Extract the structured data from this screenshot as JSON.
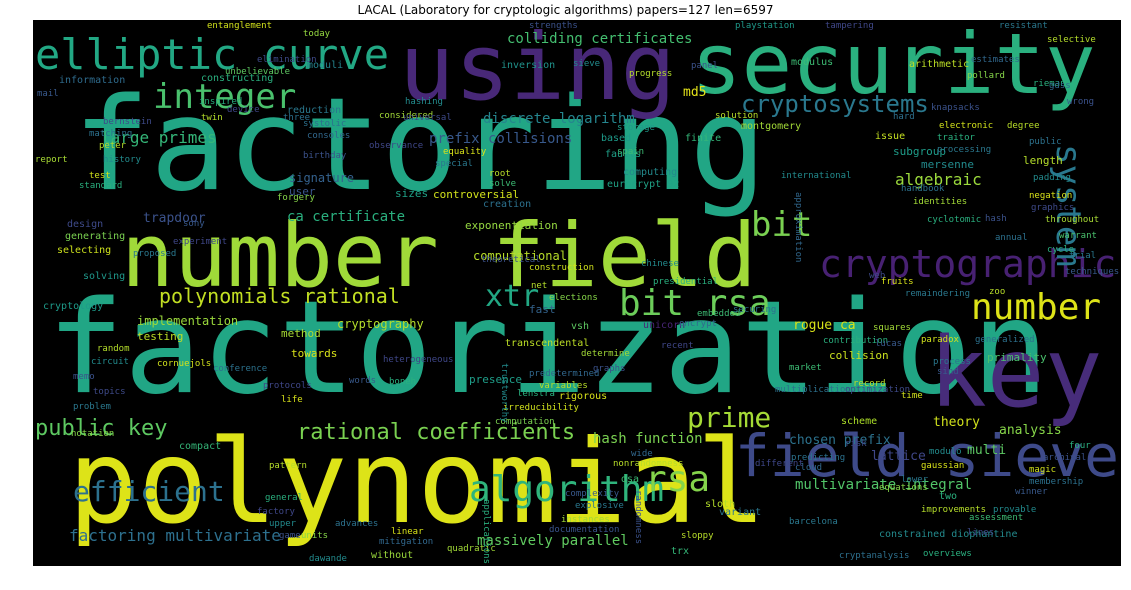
{
  "title": "LACAL (Laboratory for cryptologic algorithms) papers=127 len=6597",
  "words": [
    {
      "text": "factoring",
      "color": "#21a685"
    },
    {
      "text": "factorization",
      "color": "#21a685"
    },
    {
      "text": "polynomial",
      "color": "#dde318"
    },
    {
      "text": "using",
      "color": "#482878"
    },
    {
      "text": "security",
      "color": "#2ab07f"
    },
    {
      "text": "number field",
      "color": "#a0da39"
    },
    {
      "text": "key",
      "color": "#472c7a"
    },
    {
      "text": "field sieve",
      "color": "#3e4a89"
    },
    {
      "text": "elliptic curve",
      "color": "#22a884"
    },
    {
      "text": "integer",
      "color": "#4ac16d"
    },
    {
      "text": "cryptographic",
      "color": "#482173"
    },
    {
      "text": "system",
      "color": "#29788e"
    },
    {
      "text": "bit",
      "color": "#7ad151"
    },
    {
      "text": "number",
      "color": "#dde318"
    },
    {
      "text": "algorithm",
      "color": "#2fb47c"
    },
    {
      "text": "rsa",
      "color": "#84d44b"
    },
    {
      "text": "bit rsa",
      "color": "#6ccd5a"
    },
    {
      "text": "xtr",
      "color": "#22a884"
    },
    {
      "text": "cryptosystems",
      "color": "#2a788e"
    },
    {
      "text": "efficient",
      "color": "#2c718e"
    },
    {
      "text": "prime",
      "color": "#a5db36"
    },
    {
      "text": "polynomials rational",
      "color": "#c2df23"
    },
    {
      "text": "rational coefficients",
      "color": "#7ad151"
    },
    {
      "text": "public key",
      "color": "#5ec962"
    },
    {
      "text": "factoring multivariate",
      "color": "#2d708e"
    },
    {
      "text": "multivariate integral",
      "color": "#52c569"
    },
    {
      "text": "massively parallel",
      "color": "#60ca60"
    },
    {
      "text": "discrete logarithm",
      "color": "#25858e"
    },
    {
      "text": "large primes",
      "color": "#35b779"
    },
    {
      "text": "colliding certificates",
      "color": "#44bf70"
    },
    {
      "text": "prefix collisions",
      "color": "#38598c"
    },
    {
      "text": "md5",
      "color": "#e5e419"
    },
    {
      "text": "hash function",
      "color": "#7ad151"
    },
    {
      "text": "algebraic",
      "color": "#9bd93c"
    },
    {
      "text": "signature",
      "color": "#34618d"
    },
    {
      "text": "ca certificate",
      "color": "#2ab07f"
    },
    {
      "text": "trapdoor",
      "color": "#3b528b"
    },
    {
      "text": "analysis",
      "color": "#86d549"
    },
    {
      "text": "theory",
      "color": "#d0e11c"
    },
    {
      "text": "chosen prefix",
      "color": "#2c728e"
    },
    {
      "text": "lattice",
      "color": "#3f4788"
    },
    {
      "text": "multi",
      "color": "#5dc863"
    },
    {
      "text": "rogue ca",
      "color": "#d8e219"
    },
    {
      "text": "cryptography",
      "color": "#b5de2b"
    },
    {
      "text": "implementation",
      "color": "#9bd93c"
    },
    {
      "text": "computational",
      "color": "#b8de29"
    },
    {
      "text": "exponentiation",
      "color": "#95d840"
    },
    {
      "text": "controversial",
      "color": "#d2e21b"
    },
    {
      "text": "mersenne",
      "color": "#228b8d"
    },
    {
      "text": "subgroup",
      "color": "#1e9c89"
    },
    {
      "text": "length",
      "color": "#b5de2b"
    },
    {
      "text": "primality",
      "color": "#4ac16d"
    },
    {
      "text": "collision",
      "color": "#cae11f"
    },
    {
      "text": "towards",
      "color": "#d8e219"
    },
    {
      "text": "method",
      "color": "#a8db34"
    },
    {
      "text": "testing",
      "color": "#bddf26"
    },
    {
      "text": "fast",
      "color": "#33638d"
    },
    {
      "text": "presence",
      "color": "#1f9e89"
    },
    {
      "text": "creation",
      "color": "#2c718e"
    },
    {
      "text": "user",
      "color": "#39558c"
    },
    {
      "text": "sizes",
      "color": "#1fa187"
    },
    {
      "text": "montgomery",
      "color": "#a2da37"
    },
    {
      "text": "inversion",
      "color": "#20938c"
    },
    {
      "text": "moduli",
      "color": "#25848e"
    },
    {
      "text": "modulus",
      "color": "#3dbc74"
    },
    {
      "text": "arithmetic",
      "color": "#bddf26"
    },
    {
      "text": "reduction",
      "color": "#2a788e"
    },
    {
      "text": "constructing",
      "color": "#2ab07f"
    },
    {
      "text": "information",
      "color": "#2f6c8e"
    },
    {
      "text": "computing",
      "color": "#238a8d"
    },
    {
      "text": "eurocrypt 92",
      "color": "#20a386"
    },
    {
      "text": "faults",
      "color": "#1fa088"
    },
    {
      "text": "finite",
      "color": "#35b779"
    },
    {
      "text": "based",
      "color": "#1e9b8a"
    },
    {
      "text": "issue",
      "color": "#c5e021"
    },
    {
      "text": "generating",
      "color": "#7ad151"
    },
    {
      "text": "selecting",
      "color": "#cde11d"
    },
    {
      "text": "solving",
      "color": "#1f988b"
    },
    {
      "text": "design",
      "color": "#3e4a89"
    },
    {
      "text": "cryptology",
      "color": "#1e9b8a"
    },
    {
      "text": "transcendental",
      "color": "#bddf26"
    },
    {
      "text": "variant",
      "color": "#2a778e"
    },
    {
      "text": "compact",
      "color": "#35b779"
    },
    {
      "text": "scheme",
      "color": "#ade028"
    },
    {
      "text": "two",
      "color": "#2ab07f"
    },
    {
      "text": "documentation",
      "color": "#3a548c"
    },
    {
      "text": "unicorn",
      "color": "#482576"
    },
    {
      "text": "vsh",
      "color": "#5ec962"
    },
    {
      "text": "sloth",
      "color": "#b5de2b"
    },
    {
      "text": "without",
      "color": "#9bd93c"
    },
    {
      "text": "trx",
      "color": "#35b779"
    },
    {
      "text": "constrained diophantine",
      "color": "#238a8d"
    },
    {
      "text": "cryptanalysis",
      "color": "#2d708e"
    },
    {
      "text": "overviews",
      "color": "#2ab07f"
    },
    {
      "text": "rigorous",
      "color": "#d8e219"
    },
    {
      "text": "computation",
      "color": "#7ad151"
    },
    {
      "text": "irreducibility",
      "color": "#d0e11c"
    },
    {
      "text": "lenstra",
      "color": "#2ab07f"
    },
    {
      "text": "dsa",
      "color": "#3dbc74"
    },
    {
      "text": "record",
      "color": "#b8de29"
    },
    {
      "text": "entanglement",
      "color": "#d2e21b"
    },
    {
      "text": "today",
      "color": "#95d840"
    },
    {
      "text": "strengths",
      "color": "#3b528b"
    },
    {
      "text": "playstation",
      "color": "#1f9a8a"
    },
    {
      "text": "tampering",
      "color": "#3f4788"
    },
    {
      "text": "resistant",
      "color": "#2a788e"
    },
    {
      "text": "selective",
      "color": "#b5de2b"
    },
    {
      "text": "estimates",
      "color": "#31688e"
    },
    {
      "text": "pollard",
      "color": "#86d549"
    },
    {
      "text": "riemann",
      "color": "#2ab07f"
    },
    {
      "text": "wrong",
      "color": "#3b528b"
    },
    {
      "text": "degree",
      "color": "#b8de29"
    },
    {
      "text": "public",
      "color": "#2c728e"
    },
    {
      "text": "padding",
      "color": "#228b8d"
    },
    {
      "text": "negation",
      "color": "#d8e219"
    },
    {
      "text": "throughout",
      "color": "#a8db34"
    },
    {
      "text": "warrant",
      "color": "#4ac16d"
    },
    {
      "text": "trial",
      "color": "#29788e"
    },
    {
      "text": "techniques",
      "color": "#38598c"
    },
    {
      "text": "cycle",
      "color": "#2ab07f"
    },
    {
      "text": "elimination",
      "color": "#3e4a89"
    },
    {
      "text": "unbelievable",
      "color": "#5ec962"
    },
    {
      "text": "progress",
      "color": "#b5de2b"
    },
    {
      "text": "hashing",
      "color": "#228b8d"
    },
    {
      "text": "considered",
      "color": "#a2da37"
    },
    {
      "text": "three",
      "color": "#2c718e"
    },
    {
      "text": "device",
      "color": "#3f4788"
    },
    {
      "text": "solution",
      "color": "#b8de29"
    },
    {
      "text": "hard",
      "color": "#2d708e"
    },
    {
      "text": "knapsacks",
      "color": "#3b528b"
    },
    {
      "text": "electronic",
      "color": "#d2e21b"
    },
    {
      "text": "traitor",
      "color": "#2ab07f"
    },
    {
      "text": "storage",
      "color": "#1f9a8a"
    },
    {
      "text": "spain",
      "color": "#3dbc74"
    },
    {
      "text": "processing",
      "color": "#2a788e"
    },
    {
      "text": "report",
      "color": "#a8db34"
    },
    {
      "text": "bernstein",
      "color": "#3e4a89"
    },
    {
      "text": "matching",
      "color": "#2c718e"
    },
    {
      "text": "peter",
      "color": "#b5de2b"
    },
    {
      "text": "history",
      "color": "#228b8d"
    },
    {
      "text": "test",
      "color": "#d0e11c"
    },
    {
      "text": "standard",
      "color": "#2ab07f"
    },
    {
      "text": "forgery",
      "color": "#86d549"
    },
    {
      "text": "birthday",
      "color": "#3b528b"
    },
    {
      "text": "consoles",
      "color": "#31688e"
    },
    {
      "text": "equality",
      "color": "#d8e219"
    },
    {
      "text": "special",
      "color": "#2a788e"
    },
    {
      "text": "root",
      "color": "#b8de29"
    },
    {
      "text": "solve",
      "color": "#3dbc74"
    },
    {
      "text": "observance",
      "color": "#3f4788"
    },
    {
      "text": "handbook",
      "color": "#2c728e"
    },
    {
      "text": "identities",
      "color": "#a2da37"
    },
    {
      "text": "cyclotomic",
      "color": "#2ab07f"
    },
    {
      "text": "hash",
      "color": "#3b528b"
    },
    {
      "text": "international",
      "color": "#228b8d"
    },
    {
      "text": "approximation",
      "color": "#31688e"
    },
    {
      "text": "graphics",
      "color": "#3e4a89"
    },
    {
      "text": "annual",
      "color": "#2c718e"
    },
    {
      "text": "experiment",
      "color": "#3f4788"
    },
    {
      "text": "proposed",
      "color": "#2a788e"
    },
    {
      "text": "sony",
      "color": "#38598c"
    },
    {
      "text": "construction",
      "color": "#d0e11c"
    },
    {
      "text": "net",
      "color": "#b5de2b"
    },
    {
      "text": "theoretical",
      "color": "#3b528b"
    },
    {
      "text": "chinese",
      "color": "#228b8d"
    },
    {
      "text": "presidential",
      "color": "#2ab07f"
    },
    {
      "text": "elections",
      "color": "#86d549"
    },
    {
      "text": "embedded",
      "color": "#3dbc74"
    },
    {
      "text": "securing",
      "color": "#2c728e"
    },
    {
      "text": "web",
      "color": "#3e4a89"
    },
    {
      "text": "fruits",
      "color": "#d8e219"
    },
    {
      "text": "remaindering",
      "color": "#2a788e"
    },
    {
      "text": "zoo",
      "color": "#b8de29"
    },
    {
      "text": "squares",
      "color": "#a2da37"
    },
    {
      "text": "recent",
      "color": "#3f4788"
    },
    {
      "text": "encrypt",
      "color": "#31688e"
    },
    {
      "text": "contribution",
      "color": "#2ab07f"
    },
    {
      "text": "lucas",
      "color": "#38598c"
    },
    {
      "text": "paradox",
      "color": "#d0e11c"
    },
    {
      "text": "generalized",
      "color": "#2c718e"
    },
    {
      "text": "random",
      "color": "#b5de2b"
    },
    {
      "text": "circuit",
      "color": "#228b8d"
    },
    {
      "text": "memo",
      "color": "#3b528b"
    },
    {
      "text": "topics",
      "color": "#3e4a89"
    },
    {
      "text": "problem",
      "color": "#2a788e"
    },
    {
      "text": "notation",
      "color": "#86d549"
    },
    {
      "text": "conference",
      "color": "#2c728e"
    },
    {
      "text": "protocols",
      "color": "#3f4788"
    },
    {
      "text": "life",
      "color": "#d8e219"
    },
    {
      "text": "words",
      "color": "#38598c"
    },
    {
      "text": "boneh",
      "color": "#2ab07f"
    },
    {
      "text": "graphs",
      "color": "#3b528b"
    },
    {
      "text": "determine",
      "color": "#a2da37"
    },
    {
      "text": "predetermined",
      "color": "#31688e"
    },
    {
      "text": "variables",
      "color": "#b8de29"
    },
    {
      "text": "trustworthy",
      "color": "#228b8d"
    },
    {
      "text": "market",
      "color": "#3dbc74"
    },
    {
      "text": "multiplication",
      "color": "#2c718e"
    },
    {
      "text": "optimization",
      "color": "#3e4a89"
    },
    {
      "text": "time",
      "color": "#d0e11c"
    },
    {
      "text": "process",
      "color": "#2a788e"
    },
    {
      "text": "sind",
      "color": "#38598c"
    },
    {
      "text": "pattern",
      "color": "#b5de2b"
    },
    {
      "text": "general",
      "color": "#2ab07f"
    },
    {
      "text": "factory",
      "color": "#3f4788"
    },
    {
      "text": "upper",
      "color": "#228b8d"
    },
    {
      "text": "game",
      "color": "#3b528b"
    },
    {
      "text": "units",
      "color": "#86d549"
    },
    {
      "text": "advances",
      "color": "#2c728e"
    },
    {
      "text": "linear",
      "color": "#d8e219"
    },
    {
      "text": "mitigation",
      "color": "#31688e"
    },
    {
      "text": "quadratic",
      "color": "#a2da37"
    },
    {
      "text": "explosive",
      "color": "#2a788e"
    },
    {
      "text": "sloppy",
      "color": "#b8de29"
    },
    {
      "text": "winner",
      "color": "#38598c"
    },
    {
      "text": "lines",
      "color": "#3e4a89"
    },
    {
      "text": "provable",
      "color": "#228b8d"
    },
    {
      "text": "magic",
      "color": "#d0e11c"
    },
    {
      "text": "four",
      "color": "#2ab07f"
    },
    {
      "text": "archival",
      "color": "#3b528b"
    },
    {
      "text": "membership",
      "color": "#2c718e"
    },
    {
      "text": "improvements",
      "color": "#b5de2b"
    },
    {
      "text": "assessment",
      "color": "#3dbc74"
    },
    {
      "text": "cloud",
      "color": "#31688e"
    },
    {
      "text": "different",
      "color": "#3f4788"
    },
    {
      "text": "lower",
      "color": "#2a788e"
    },
    {
      "text": "equations",
      "color": "#86d549"
    },
    {
      "text": "modulo",
      "color": "#228b8d"
    },
    {
      "text": "gaussian",
      "color": "#d8e219"
    },
    {
      "text": "predicting",
      "color": "#2c728e"
    },
    {
      "text": "risk",
      "color": "#3e4a89"
    },
    {
      "text": "instances",
      "color": "#a2da37"
    },
    {
      "text": "complexity",
      "color": "#38598c"
    },
    {
      "text": "applications",
      "color": "#2ab07f"
    },
    {
      "text": "randomness",
      "color": "#3b528b"
    },
    {
      "text": "nonrandomness",
      "color": "#b8de29"
    },
    {
      "text": "wide",
      "color": "#31688e"
    },
    {
      "text": "barcelona",
      "color": "#2a788e"
    },
    {
      "text": "dawande",
      "color": "#228b8d"
    },
    {
      "text": "cornuejols",
      "color": "#d0e11c"
    },
    {
      "text": "heterogeneous",
      "color": "#3f4788"
    },
    {
      "text": "systolic",
      "color": "#2c718e"
    },
    {
      "text": "universal",
      "color": "#3e4a89"
    },
    {
      "text": "mail",
      "color": "#38598c"
    },
    {
      "text": "twin",
      "color": "#b5de2b"
    },
    {
      "text": "inspired",
      "color": "#2ab07f"
    },
    {
      "text": "sieve",
      "color": "#228b8d"
    },
    {
      "text": "panel",
      "color": "#3b528b"
    },
    {
      "text": "gdss",
      "color": "#31688e"
    }
  ]
}
